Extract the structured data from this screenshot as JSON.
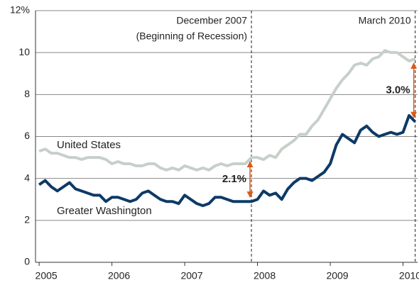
{
  "chart_data": {
    "type": "line",
    "x": [
      2005,
      2005.083,
      2005.167,
      2005.25,
      2005.333,
      2005.417,
      2005.5,
      2005.583,
      2005.667,
      2005.75,
      2005.833,
      2005.917,
      2006,
      2006.083,
      2006.167,
      2006.25,
      2006.333,
      2006.417,
      2006.5,
      2006.583,
      2006.667,
      2006.75,
      2006.833,
      2006.917,
      2007,
      2007.083,
      2007.167,
      2007.25,
      2007.333,
      2007.417,
      2007.5,
      2007.583,
      2007.667,
      2007.75,
      2007.833,
      2007.917,
      2008,
      2008.083,
      2008.167,
      2008.25,
      2008.333,
      2008.417,
      2008.5,
      2008.583,
      2008.667,
      2008.75,
      2008.833,
      2008.917,
      2009,
      2009.083,
      2009.167,
      2009.25,
      2009.333,
      2009.417,
      2009.5,
      2009.583,
      2009.667,
      2009.75,
      2009.833,
      2009.917,
      2010,
      2010.083,
      2010.167
    ],
    "series": [
      {
        "name": "United States",
        "color": "#c6d0c9",
        "values": [
          5.3,
          5.4,
          5.2,
          5.2,
          5.1,
          5.0,
          5.0,
          4.9,
          5.0,
          5.0,
          5.0,
          4.9,
          4.7,
          4.8,
          4.7,
          4.7,
          4.6,
          4.6,
          4.7,
          4.7,
          4.5,
          4.4,
          4.5,
          4.4,
          4.6,
          4.5,
          4.4,
          4.5,
          4.4,
          4.6,
          4.7,
          4.6,
          4.7,
          4.7,
          4.7,
          5.0,
          5.0,
          4.9,
          5.1,
          5.0,
          5.4,
          5.6,
          5.8,
          6.1,
          6.1,
          6.5,
          6.8,
          7.3,
          7.8,
          8.3,
          8.7,
          9.0,
          9.4,
          9.5,
          9.4,
          9.7,
          9.8,
          10.1,
          10.0,
          10.0,
          9.8,
          9.6,
          9.7
        ]
      },
      {
        "name": "Greater Washington",
        "color": "#0d3a66",
        "values": [
          3.7,
          3.9,
          3.6,
          3.4,
          3.6,
          3.8,
          3.5,
          3.4,
          3.3,
          3.2,
          3.2,
          2.9,
          3.1,
          3.1,
          3.0,
          2.9,
          3.0,
          3.3,
          3.4,
          3.2,
          3.0,
          2.9,
          2.9,
          2.8,
          3.2,
          3.0,
          2.8,
          2.7,
          2.8,
          3.1,
          3.1,
          3.0,
          2.9,
          2.9,
          2.9,
          2.9,
          3.0,
          3.4,
          3.2,
          3.3,
          3.0,
          3.5,
          3.8,
          4.0,
          4.0,
          3.9,
          4.1,
          4.3,
          4.7,
          5.6,
          6.1,
          5.9,
          5.7,
          6.3,
          6.5,
          6.2,
          6.0,
          6.1,
          6.2,
          6.1,
          6.2,
          7.0,
          6.7
        ]
      }
    ],
    "xlim": [
      2004.95,
      2010.2
    ],
    "xticks": [
      2005,
      2006,
      2007,
      2008,
      2009,
      2010
    ],
    "ylim": [
      0,
      12
    ],
    "yticks": [
      0,
      2,
      4,
      6,
      8,
      10,
      {
        "value": 12,
        "label": "12%"
      }
    ],
    "grid": true,
    "vlines": [
      {
        "x": 2007.917,
        "label": [
          "December 2007",
          "(Beginning of Recession)"
        ]
      },
      {
        "x": 2010.167,
        "label": [
          "March 2010"
        ]
      }
    ],
    "gaps": [
      {
        "x": 2007.917,
        "text": "2.1%",
        "color": "#d95b1c"
      },
      {
        "x": 2010.167,
        "text": "3.0%",
        "color": "#d95b1c"
      }
    ]
  }
}
